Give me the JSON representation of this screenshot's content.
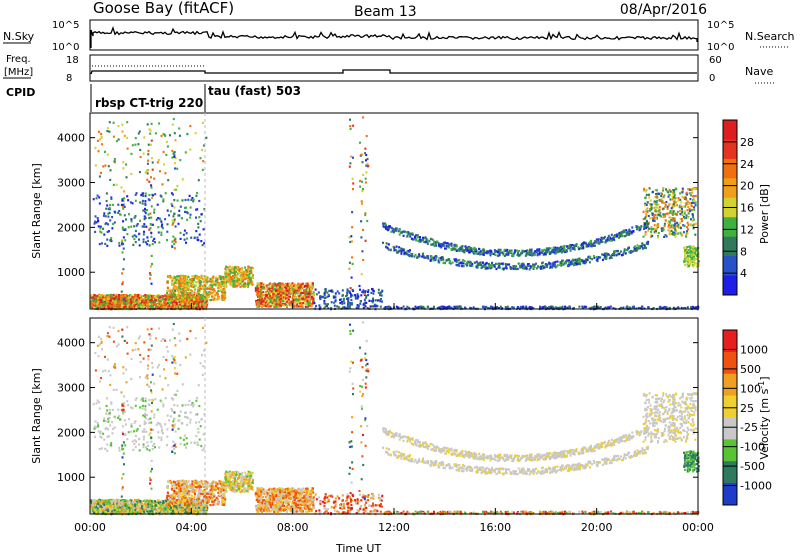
{
  "header": {
    "title": "Goose Bay (fitACF)",
    "beam": "Beam 13",
    "date": "08/Apr/2016"
  },
  "summary": {
    "nsky_label": "N.Sky",
    "nsky_ticks": [
      "10^5",
      "10^0"
    ],
    "nsearch_label": "N.Search",
    "nsearch_ticks": [
      "10^5",
      "10^0"
    ],
    "freq_label": "Freq.",
    "freq_unit": "[MHz]",
    "freq_ticks": [
      "18",
      "8"
    ],
    "nave_label": "Nave",
    "nave_ticks": [
      "60",
      "0"
    ],
    "cpid_label": "CPID",
    "cpid_segments": [
      {
        "label": "rbsp CT-trig 220",
        "start_hour": 0.0,
        "end_hour": 4.6
      },
      {
        "label": "tau (fast) 503",
        "start_hour": 4.6,
        "end_hour": 24.0
      }
    ]
  },
  "chart_data": [
    {
      "type": "heatmap",
      "parameter": "Power",
      "colorbar_label": "Power [dB]",
      "colorbar_ticks": [
        "28",
        "24",
        "20",
        "16",
        "12",
        "8",
        "4"
      ],
      "colors": [
        "#1e1ee6",
        "#2850c8",
        "#2f7a5a",
        "#40b040",
        "#d2d232",
        "#f0a018",
        "#f07010",
        "#e63220",
        "#dc1e1e"
      ],
      "ylabel": "Slant Range [km]",
      "yticks": [
        1000,
        2000,
        3000,
        4000
      ],
      "ylim": [
        180,
        4550
      ],
      "xlim": [
        0,
        24
      ]
    },
    {
      "type": "heatmap",
      "parameter": "Velocity",
      "colorbar_label": "Velocity [m s^-1]",
      "colorbar_ticks": [
        "1000",
        "500",
        "100",
        "25",
        "-25",
        "-100",
        "-500",
        "-1000"
      ],
      "colors": [
        "#1e3cc8",
        "#2e7a5e",
        "#58c434",
        "#c8c8c8",
        "#f0d030",
        "#f0a020",
        "#f05010",
        "#e61e1e"
      ],
      "ylabel": "Slant Range [km]",
      "yticks": [
        1000,
        2000,
        3000,
        4000
      ],
      "ylim": [
        180,
        4550
      ],
      "xlim": [
        0,
        24
      ],
      "xticks": [
        "00:00",
        "04:00",
        "08:00",
        "12:00",
        "16:00",
        "20:00",
        "00:00"
      ],
      "xlabel": "Time UT"
    }
  ]
}
